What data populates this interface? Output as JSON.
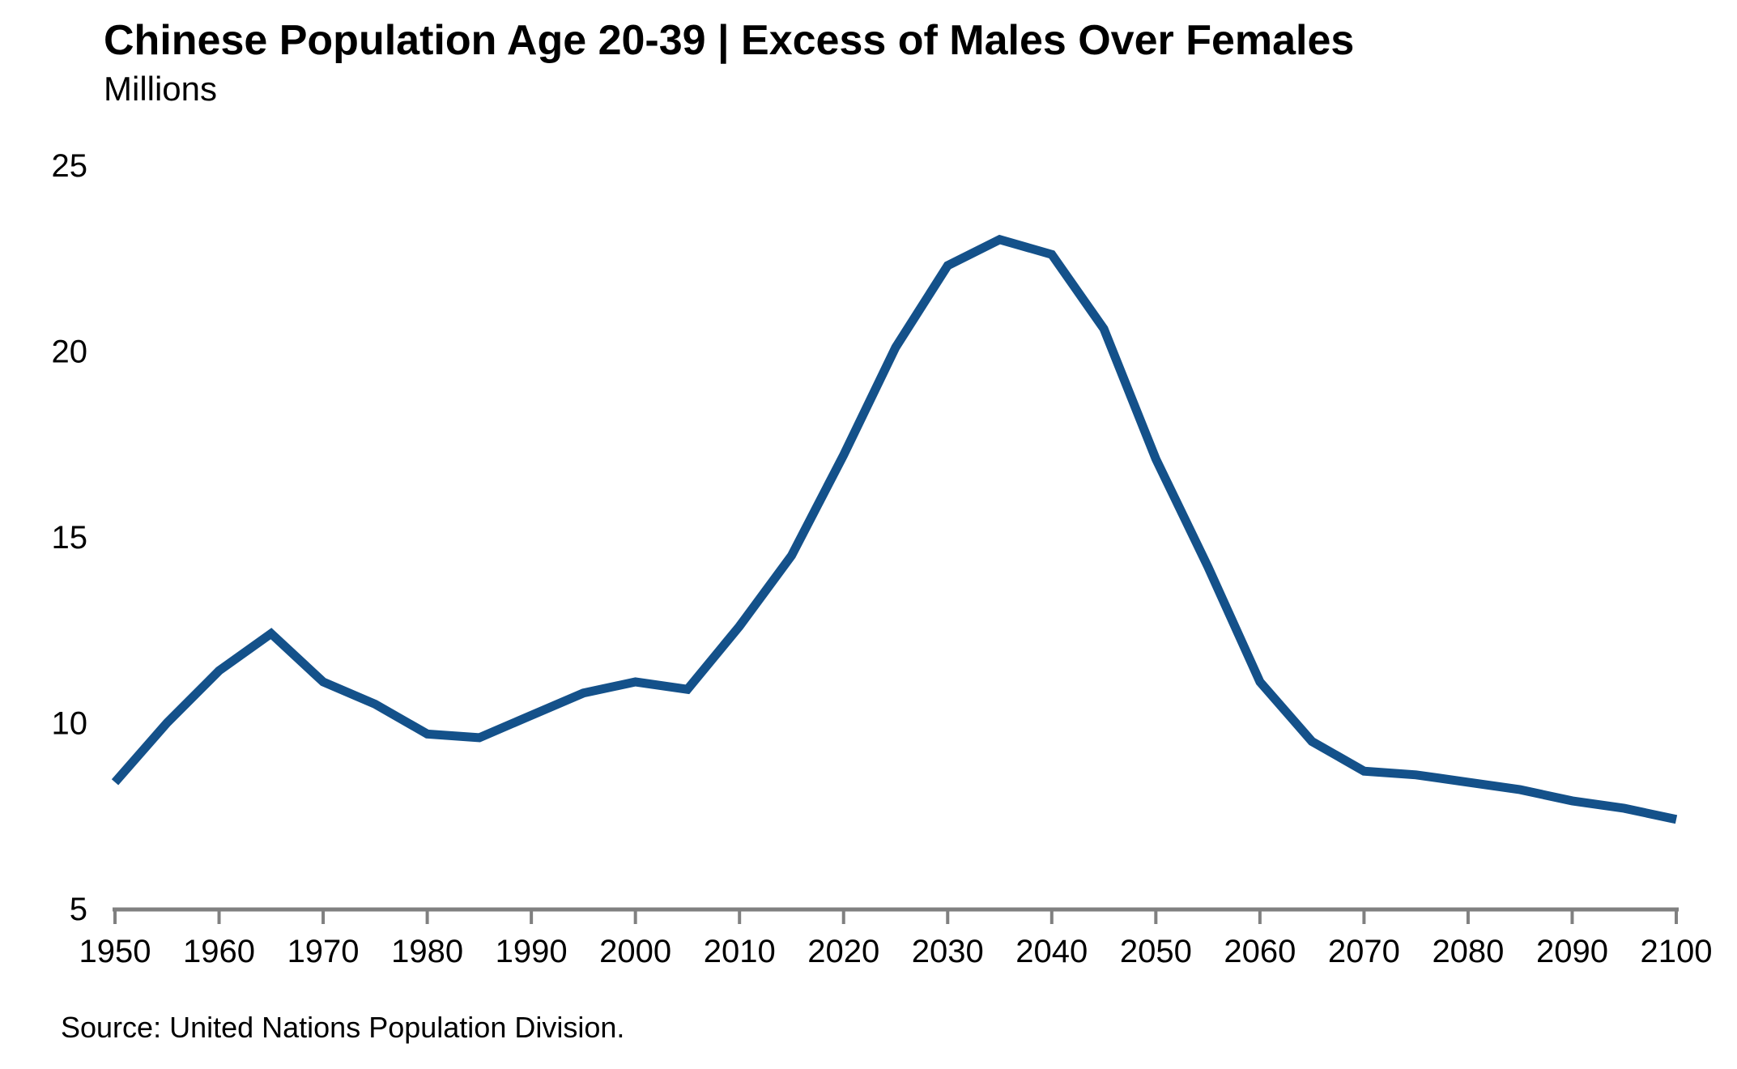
{
  "header": {
    "title": "Chinese Population Age 20-39 | Excess of Males Over Females",
    "subtitle": "Millions"
  },
  "footer": {
    "source": "Source: United Nations Population Division."
  },
  "colors": {
    "line": "#14518A",
    "axis": "#808080",
    "text": "#000000",
    "background": "#FFFFFF"
  },
  "chart_data": {
    "type": "line",
    "title": "Chinese Population Age 20-39 | Excess of Males Over Females",
    "xlabel": "",
    "ylabel": "Millions",
    "x": [
      1950,
      1955,
      1960,
      1965,
      1970,
      1975,
      1980,
      1985,
      1990,
      1995,
      2000,
      2005,
      2010,
      2015,
      2020,
      2025,
      2030,
      2035,
      2040,
      2045,
      2050,
      2055,
      2060,
      2065,
      2070,
      2075,
      2080,
      2085,
      2090,
      2095,
      2100
    ],
    "series": [
      {
        "name": "Excess of males over females (millions)",
        "color": "#14518A",
        "values": [
          8.4,
          10.0,
          11.4,
          12.4,
          11.1,
          10.5,
          9.7,
          9.6,
          10.2,
          10.8,
          11.1,
          10.9,
          12.6,
          14.5,
          17.2,
          20.1,
          22.3,
          23.0,
          22.6,
          20.6,
          17.1,
          14.2,
          11.1,
          9.5,
          8.7,
          8.6,
          8.4,
          8.2,
          7.9,
          7.7,
          7.4
        ]
      }
    ],
    "xlim": [
      1950,
      2100
    ],
    "ylim": [
      5,
      25
    ],
    "x_ticks": [
      1950,
      1960,
      1970,
      1980,
      1990,
      2000,
      2010,
      2020,
      2030,
      2040,
      2050,
      2060,
      2070,
      2080,
      2090,
      2100
    ],
    "y_ticks": [
      5,
      10,
      15,
      20,
      25
    ],
    "grid": false,
    "legend": false
  }
}
